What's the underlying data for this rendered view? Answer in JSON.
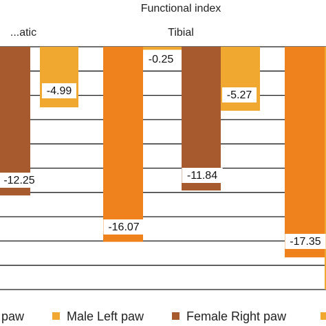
{
  "chart_data": {
    "type": "bar",
    "title": "Functional index",
    "groups": [
      "...atic",
      "Tibial",
      ""
    ],
    "series": [
      {
        "name": "...paw",
        "color": "#F0821E"
      },
      {
        "name": "Male Left paw",
        "color": "#F0A830"
      },
      {
        "name": "Female Right paw",
        "color": "#A65A2E"
      },
      {
        "name": "",
        "color": "#F0A830"
      }
    ],
    "bars": [
      {
        "group": "...atic",
        "series": "Female Right paw",
        "value": -12.25,
        "label": "-12.25"
      },
      {
        "group": "...atic",
        "series": "Male Left paw",
        "value": -4.99,
        "label": "-4.99"
      },
      {
        "group": "Tibial",
        "series": "...paw",
        "value": -16.07,
        "label": "-16.07"
      },
      {
        "group": "Tibial",
        "series": "Male Left paw",
        "value": -0.25,
        "label": "-0.25"
      },
      {
        "group": "Tibial",
        "series": "Female Right paw",
        "value": -11.84,
        "label": "-11.84"
      },
      {
        "group": "Tibial",
        "series": "",
        "value": -5.27,
        "label": "-5.27"
      },
      {
        "group": "",
        "series": "...paw",
        "value": -17.35,
        "label": "-17.35"
      },
      {
        "group": "",
        "series": "",
        "value": -20,
        "label": ""
      }
    ],
    "ylim": [
      -22,
      0
    ],
    "grid": true,
    "legend_position": "bottom"
  }
}
